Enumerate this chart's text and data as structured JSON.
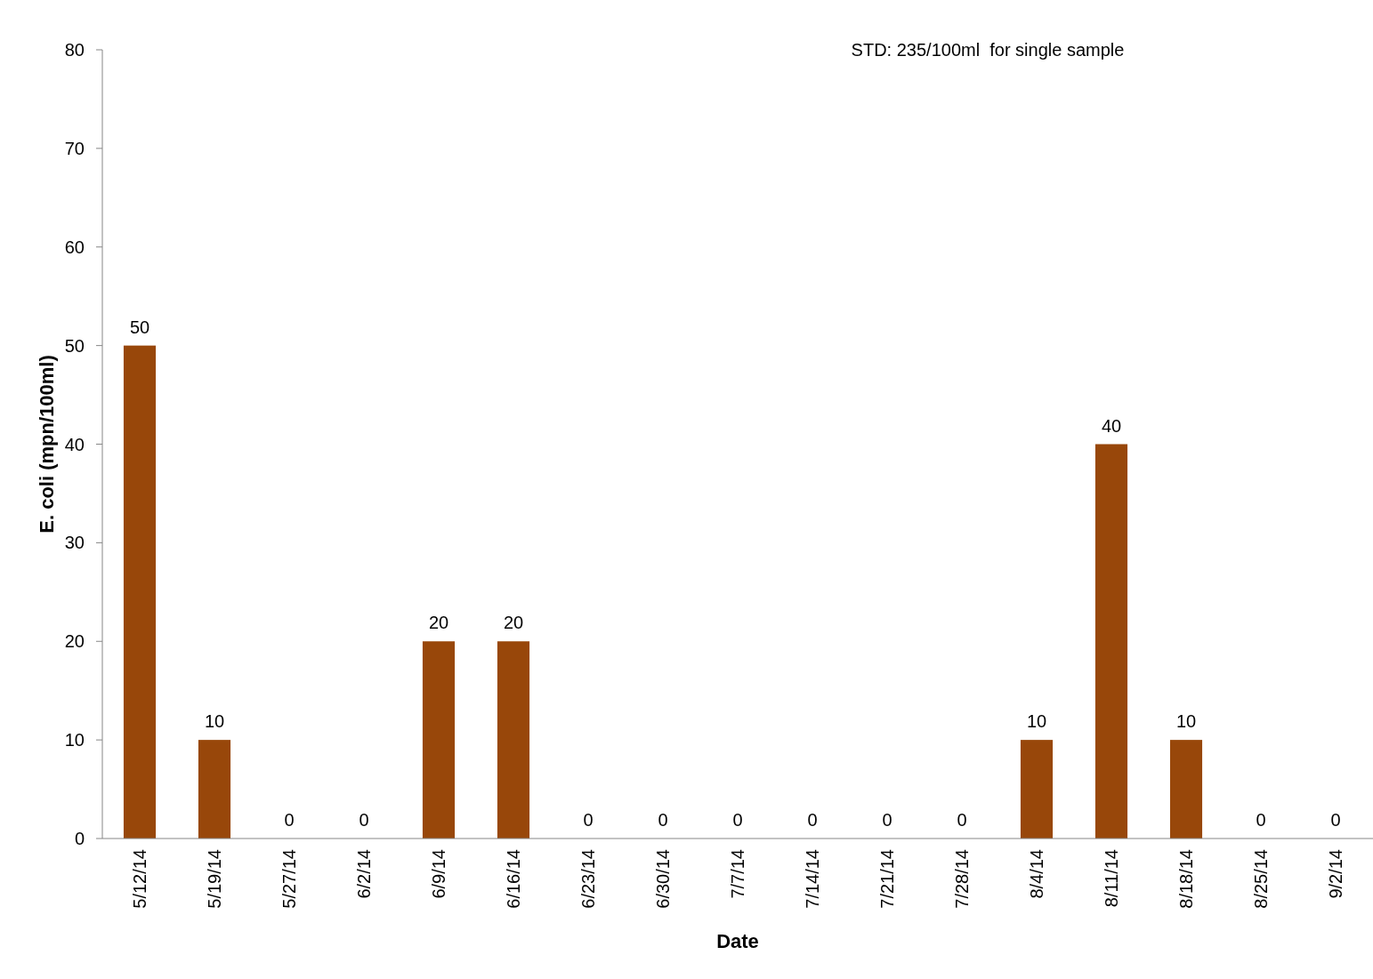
{
  "chart_data": {
    "type": "bar",
    "xlabel": "Date",
    "ylabel": "E. coli (mpn/100ml)",
    "categories": [
      "5/12/14",
      "5/19/14",
      "5/27/14",
      "6/2/14",
      "6/9/14",
      "6/16/14",
      "6/23/14",
      "6/30/14",
      "7/7/14",
      "7/14/14",
      "7/21/14",
      "7/28/14",
      "8/4/14",
      "8/11/14",
      "8/18/14",
      "8/25/14",
      "9/2/14"
    ],
    "values": [
      50,
      10,
      0,
      0,
      20,
      20,
      0,
      0,
      0,
      0,
      0,
      0,
      10,
      40,
      10,
      0,
      0
    ],
    "color": "#98470a",
    "ylim": [
      0,
      80
    ],
    "yticks": [
      0,
      10,
      20,
      30,
      40,
      50,
      60,
      70,
      80
    ],
    "grid": false,
    "data_labels": true,
    "annotations": [
      "STD: 235/100ml  for single sample"
    ]
  }
}
